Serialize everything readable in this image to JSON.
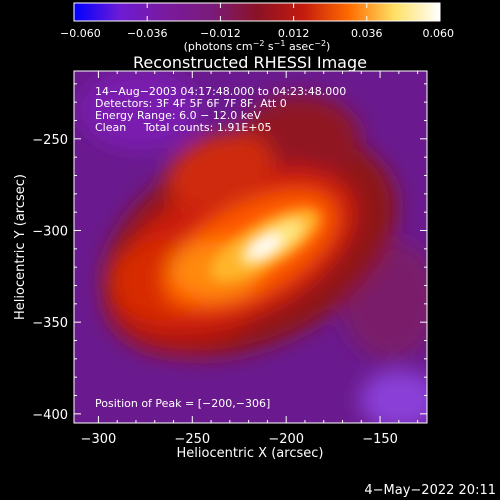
{
  "chart_data": {
    "type": "heatmap",
    "title": "Reconstructed RHESSI Image",
    "xlabel": "Heliocentric X (arcsec)",
    "ylabel": "Heliocentric Y (arcsec)",
    "xlim": [
      -313,
      -125
    ],
    "ylim": [
      -405,
      -213
    ],
    "xticks": [
      -300,
      -250,
      -200,
      -150
    ],
    "yticks": [
      -250,
      -300,
      -350,
      -400
    ],
    "xtick_labels": [
      "−300",
      "−250",
      "−200",
      "−150"
    ],
    "ytick_labels": [
      "−250",
      "−300",
      "−350",
      "−400"
    ],
    "colorbar": {
      "range": [
        -0.06,
        0.06
      ],
      "ticks": [
        -0.06,
        -0.036,
        -0.012,
        0.012,
        0.036,
        0.06
      ],
      "tick_labels": [
        "−0.060",
        "−0.036",
        "−0.012",
        "0.012",
        "0.036",
        "0.060"
      ],
      "label_text": "(photons cm",
      "label_exp1": "−2",
      "label_mid": " s",
      "label_exp2": "−1",
      "label_end": " asec",
      "label_exp3": "−2",
      "label_close": ")",
      "colormap": [
        "#0000ff",
        "#6d1bd6",
        "#7a1a9e",
        "#7b1b7b",
        "#8a1226",
        "#c31a0e",
        "#ff6a00",
        "#ffe063",
        "#ffffff"
      ]
    },
    "annotations": [
      "14−Aug−2003 04:17:48.000 to 04:23:48.000",
      "Detectors: 3F 4F 5F 6F 7F 8F, Att 0",
      "Energy Range: 6.0 − 12.0 keV",
      "Clean     Total counts: 1.91E+05"
    ],
    "peak_label": "Position of Peak = [−200,−306]",
    "peak": [
      -200,
      -306
    ],
    "colors": {
      "background": "#6a1a8e",
      "axes": "#ffffff"
    }
  },
  "footer": {
    "date_stamp": "4−May−2022 20:11"
  }
}
